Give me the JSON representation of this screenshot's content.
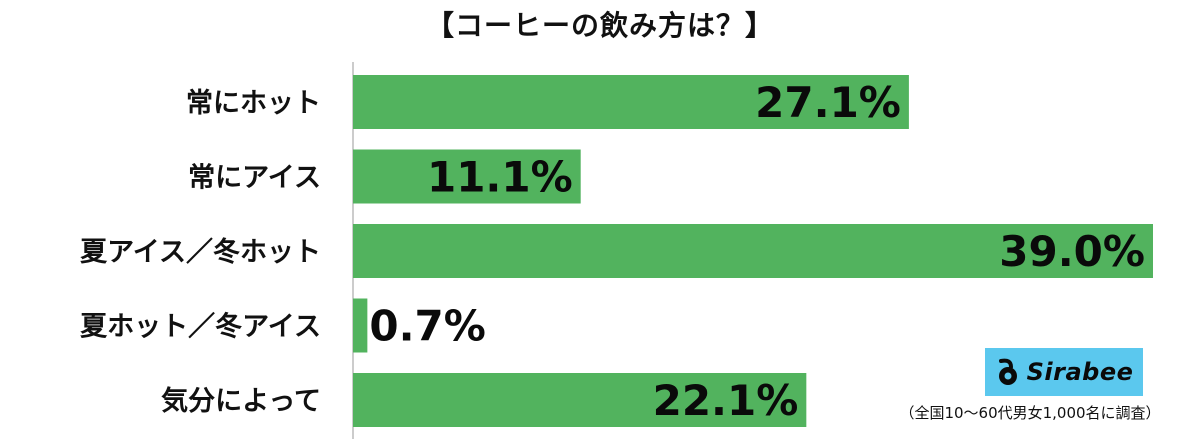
{
  "chart_data": {
    "type": "bar",
    "orientation": "horizontal",
    "title": "【コーヒーの飲み方は？】",
    "categories": [
      "常にホット",
      "常にアイス",
      "夏アイス／冬ホット",
      "夏ホット／冬アイス",
      "気分によって"
    ],
    "values": [
      27.1,
      11.1,
      39.0,
      0.7,
      22.1
    ],
    "value_labels": [
      "27.1%",
      "11.1%",
      "39.0%",
      "0.7%",
      "22.1%"
    ],
    "unit": "%",
    "xlim": [
      0,
      39.0
    ],
    "grid": false,
    "legend": "none",
    "bar_color": "#52b35e"
  },
  "logo": {
    "text": "Sirabee",
    "background": "#5bc8ee"
  },
  "footnote": "（全国10〜60代男女1,000名に調査）"
}
